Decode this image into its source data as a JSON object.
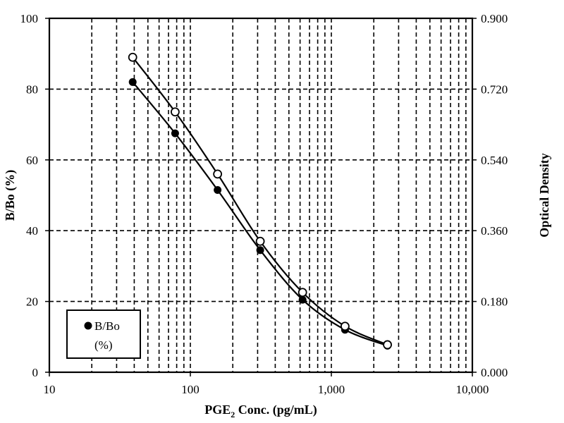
{
  "chart_data": {
    "type": "line",
    "x_scale": "log",
    "xlim": [
      10,
      10000
    ],
    "ylim": [
      0,
      100
    ],
    "y2lim": [
      0,
      0.9
    ],
    "grid": true,
    "legend_position": "bottom-left",
    "xlabel_main": "PGE",
    "xlabel_sub": "2",
    "xlabel_rest": " Conc. (pg/mL)",
    "ylabel": "B/Bo (%)",
    "y2label": "Optical Density",
    "x_tick_labels": [
      "10",
      "100",
      "1,000",
      "10,000"
    ],
    "y_tick_labels": [
      "0",
      "20",
      "40",
      "60",
      "80",
      "100"
    ],
    "y2_tick_labels": [
      "0.000",
      "0.180",
      "0.360",
      "0.540",
      "0.720",
      "0.900"
    ],
    "legend_line1": "B/Bo",
    "legend_line2": "(%)",
    "series": [
      {
        "name": "B/Bo (%)",
        "marker": "filled-circle",
        "axis": "left",
        "x": [
          39,
          78,
          156,
          313,
          625,
          1250,
          2500
        ],
        "y": [
          82,
          67.5,
          51.5,
          34.5,
          20.5,
          12,
          7.5
        ]
      },
      {
        "marker": "open-circle",
        "axis": "right",
        "x": [
          39,
          78,
          156,
          313,
          625,
          1250,
          2500
        ],
        "y": [
          0.801,
          0.662,
          0.504,
          0.333,
          0.203,
          0.117,
          0.07
        ]
      }
    ]
  }
}
